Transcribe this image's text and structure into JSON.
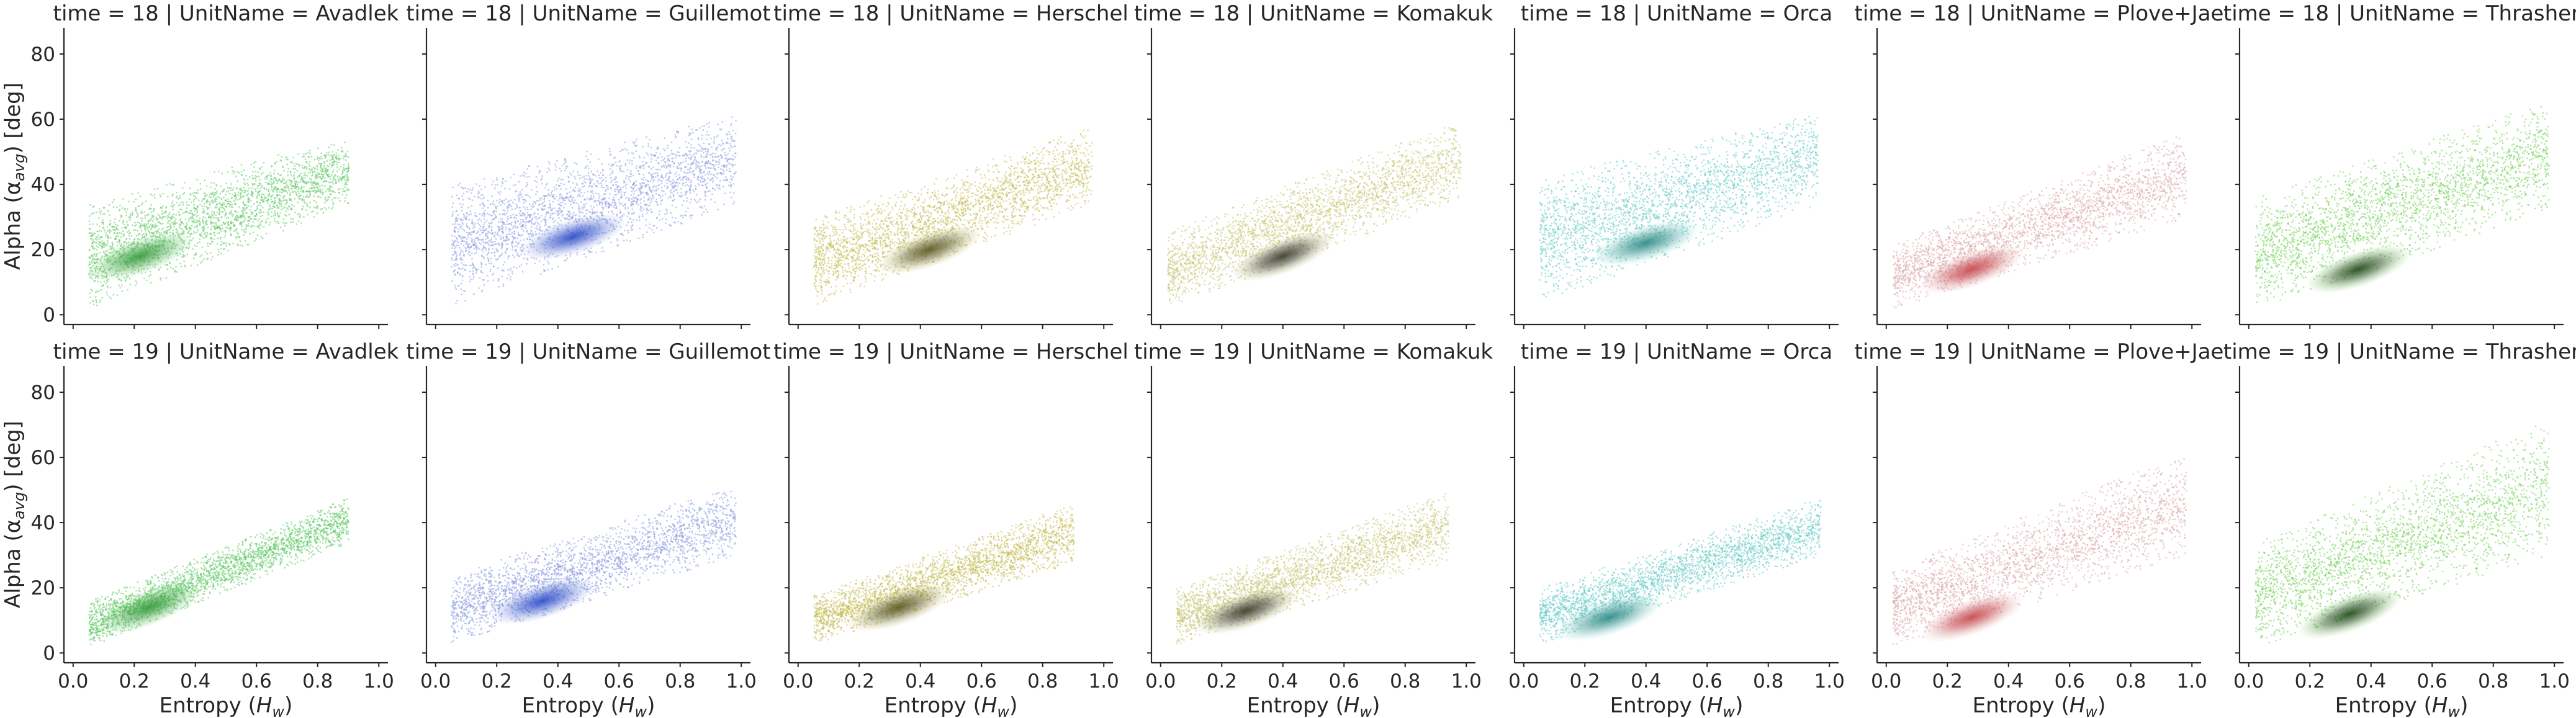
{
  "chart_data": {
    "type": "scatter",
    "layout": "facet-grid",
    "rows": [
      18,
      19
    ],
    "row_var": "time",
    "col_var": "UnitName",
    "columns": [
      "Avadlek",
      "Guillemot",
      "Herschel",
      "Komakuk",
      "Orca",
      "Plove+Jae",
      "Thrasher"
    ],
    "panel_titles": [
      [
        "time = 18 | UnitName = Avadlek",
        "time = 18 | UnitName = Guillemot",
        "time = 18 | UnitName = Herschel",
        "time = 18 | UnitName = Komakuk",
        "time = 18 | UnitName = Orca",
        "time = 18 | UnitName = Plove+Jae",
        "time = 18 | UnitName = Thrasher"
      ],
      [
        "time = 19 | UnitName = Avadlek",
        "time = 19 | UnitName = Guillemot",
        "time = 19 | UnitName = Herschel",
        "time = 19 | UnitName = Komakuk",
        "time = 19 | UnitName = Orca",
        "time = 19 | UnitName = Plove+Jae",
        "time = 19 | UnitName = Thrasher"
      ]
    ],
    "xlabel": "Entropy (H",
    "xlabel_sub": "w",
    "xlabel_end": ")",
    "ylabel": "Alpha (α",
    "ylabel_sub": "avg",
    "ylabel_end": ") [deg]",
    "xlim": [
      -0.03,
      1.03
    ],
    "ylim": [
      -3,
      88
    ],
    "xticks": [
      0.0,
      0.2,
      0.4,
      0.6,
      0.8,
      1.0
    ],
    "xtick_labels": [
      "0.0",
      "0.2",
      "0.4",
      "0.6",
      "0.8",
      "1.0"
    ],
    "yticks": [
      0,
      20,
      40,
      60,
      80
    ],
    "ytick_labels": [
      "0",
      "20",
      "40",
      "60",
      "80"
    ],
    "grid": false,
    "palette": {
      "Avadlek": "#5cc863",
      "Guillemot": "#8a9be0",
      "Herschel": "#c4bb52",
      "Komakuk": "#c2c470",
      "Orca": "#64cbc6",
      "Plove+Jae": "#dba6a9",
      "Thrasher": "#6fd154"
    },
    "density_core": {
      "Avadlek": "#3a9e40",
      "Guillemot": "#2f4fc9",
      "Herschel": "#5d5a22",
      "Komakuk": "#3e3f2c",
      "Orca": "#2f8f8a",
      "Plove+Jae": "#c64a4f",
      "Thrasher": "#244f1b"
    },
    "distributions": [
      [
        {
          "x_range": [
            0.05,
            0.9
          ],
          "y_at_x_low": [
            2,
            34
          ],
          "y_at_x_high": [
            34,
            55
          ],
          "core": [
            0.22,
            18
          ]
        },
        {
          "x_range": [
            0.05,
            0.98
          ],
          "y_at_x_low": [
            3,
            40
          ],
          "y_at_x_high": [
            34,
            62
          ],
          "core": [
            0.45,
            24
          ]
        },
        {
          "x_range": [
            0.05,
            0.96
          ],
          "y_at_x_low": [
            3,
            30
          ],
          "y_at_x_high": [
            34,
            58
          ],
          "core": [
            0.43,
            20
          ]
        },
        {
          "x_range": [
            0.02,
            0.98
          ],
          "y_at_x_low": [
            2,
            26
          ],
          "y_at_x_high": [
            36,
            60
          ],
          "core": [
            0.4,
            18
          ]
        },
        {
          "x_range": [
            0.05,
            0.96
          ],
          "y_at_x_low": [
            4,
            42
          ],
          "y_at_x_high": [
            34,
            62
          ],
          "core": [
            0.4,
            22
          ]
        },
        {
          "x_range": [
            0.02,
            0.98
          ],
          "y_at_x_low": [
            2,
            22
          ],
          "y_at_x_high": [
            30,
            56
          ],
          "core": [
            0.28,
            14
          ]
        },
        {
          "x_range": [
            0.02,
            0.98
          ],
          "y_at_x_low": [
            2,
            36
          ],
          "y_at_x_high": [
            32,
            66
          ],
          "core": [
            0.36,
            14
          ]
        }
      ],
      [
        {
          "x_range": [
            0.05,
            0.9
          ],
          "y_at_x_low": [
            2,
            16
          ],
          "y_at_x_high": [
            34,
            48
          ],
          "core": [
            0.25,
            14
          ]
        },
        {
          "x_range": [
            0.05,
            0.98
          ],
          "y_at_x_low": [
            3,
            24
          ],
          "y_at_x_high": [
            30,
            52
          ],
          "core": [
            0.35,
            16
          ]
        },
        {
          "x_range": [
            0.05,
            0.9
          ],
          "y_at_x_low": [
            3,
            18
          ],
          "y_at_x_high": [
            28,
            46
          ],
          "core": [
            0.33,
            14
          ]
        },
        {
          "x_range": [
            0.05,
            0.94
          ],
          "y_at_x_low": [
            3,
            20
          ],
          "y_at_x_high": [
            28,
            50
          ],
          "core": [
            0.28,
            13
          ]
        },
        {
          "x_range": [
            0.05,
            0.97
          ],
          "y_at_x_low": [
            3,
            20
          ],
          "y_at_x_high": [
            30,
            48
          ],
          "core": [
            0.28,
            11
          ]
        },
        {
          "x_range": [
            0.02,
            0.98
          ],
          "y_at_x_low": [
            2,
            26
          ],
          "y_at_x_high": [
            30,
            62
          ],
          "core": [
            0.28,
            11
          ]
        },
        {
          "x_range": [
            0.02,
            0.98
          ],
          "y_at_x_low": [
            2,
            34
          ],
          "y_at_x_high": [
            30,
            72
          ],
          "core": [
            0.33,
            12
          ]
        }
      ]
    ]
  }
}
